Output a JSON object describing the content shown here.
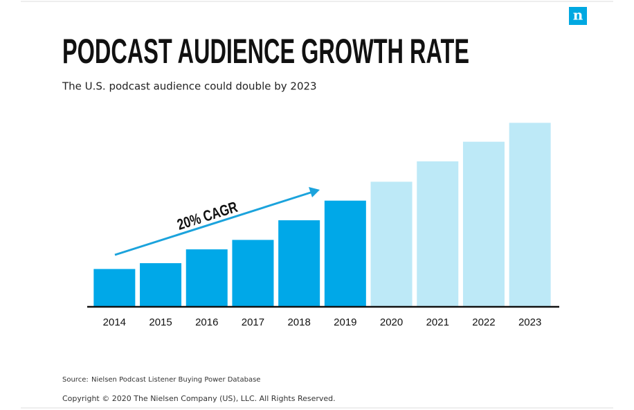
{
  "logo": "n",
  "chart_data": {
    "type": "bar",
    "title": "PODCAST AUDIENCE GROWTH RATE",
    "subtitle": "The U.S. podcast audience could double by 2023",
    "annotation": "20% CAGR",
    "categories": [
      "2014",
      "2015",
      "2016",
      "2017",
      "2018",
      "2019",
      "2020",
      "2021",
      "2022",
      "2023"
    ],
    "values": [
      52,
      60,
      79,
      92,
      119,
      146,
      172,
      200,
      227,
      253
    ],
    "colors": [
      "#00a8e8",
      "#00a8e8",
      "#00a8e8",
      "#00a8e8",
      "#00a8e8",
      "#00a8e8",
      "#bde9f7",
      "#bde9f7",
      "#bde9f7",
      "#bde9f7"
    ],
    "ylim": [
      0,
      280
    ]
  },
  "footer": {
    "source_label": "Source:",
    "source": "Nielsen Podcast Listener Buying Power Database",
    "copyright": "Copyright © 2020 The Nielsen Company (US), LLC. All Rights Reserved."
  }
}
